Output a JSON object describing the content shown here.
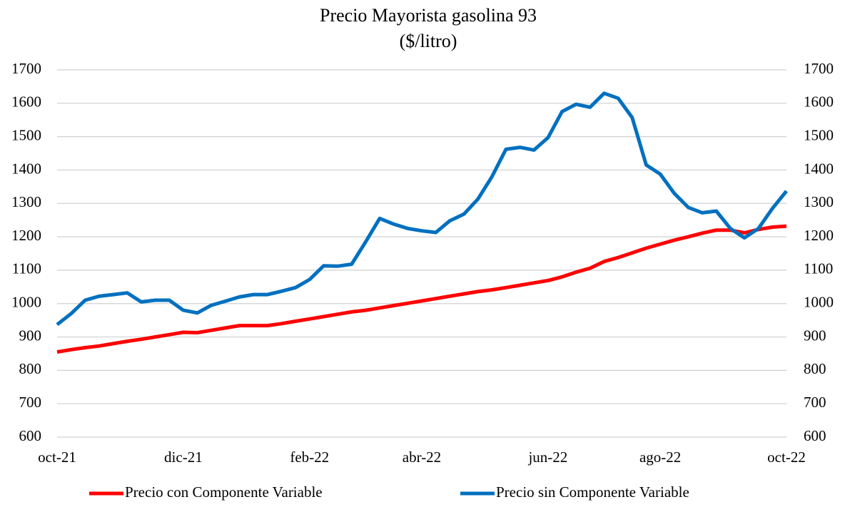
{
  "chart_data": {
    "type": "line",
    "title": "Precio Mayorista gasolina 93",
    "subtitle": "($/litro)",
    "categories": [
      "oct-21",
      null,
      null,
      null,
      null,
      null,
      null,
      null,
      null,
      "dic-21",
      null,
      null,
      null,
      null,
      null,
      null,
      null,
      null,
      "feb-22",
      null,
      null,
      null,
      null,
      null,
      null,
      null,
      "abr-22",
      null,
      null,
      null,
      null,
      null,
      null,
      null,
      null,
      "jun-22",
      null,
      null,
      null,
      null,
      null,
      null,
      null,
      "ago-22",
      null,
      null,
      null,
      null,
      null,
      null,
      null,
      null,
      "oct-22"
    ],
    "series": [
      {
        "name": "Precio con Componente Variable",
        "color": "#ff0000",
        "values": [
          855,
          862,
          868,
          873,
          880,
          887,
          893,
          900,
          907,
          914,
          913,
          920,
          927,
          934,
          934,
          934,
          940,
          947,
          954,
          961,
          968,
          975,
          980,
          987,
          994,
          1001,
          1008,
          1015,
          1022,
          1029,
          1036,
          1041,
          1048,
          1055,
          1062,
          1069,
          1080,
          1094,
          1106,
          1126,
          1138,
          1152,
          1166,
          1178,
          1190,
          1200,
          1211,
          1220,
          1220,
          1212,
          1222,
          1229,
          1232
        ]
      },
      {
        "name": "Precio sin Componente Variable",
        "color": "#0070c0",
        "values": [
          937,
          970,
          1010,
          1022,
          1027,
          1032,
          1005,
          1010,
          1010,
          980,
          972,
          995,
          1007,
          1020,
          1027,
          1027,
          1037,
          1048,
          1072,
          1113,
          1112,
          1118,
          1185,
          1255,
          1238,
          1225,
          1218,
          1213,
          1248,
          1268,
          1313,
          1380,
          1462,
          1468,
          1460,
          1497,
          1575,
          1597,
          1588,
          1630,
          1615,
          1557,
          1415,
          1388,
          1330,
          1288,
          1272,
          1277,
          1225,
          1197,
          1225,
          1285,
          1337
        ]
      }
    ],
    "ylim": [
      600,
      1700
    ],
    "yticks": [
      600,
      700,
      800,
      900,
      1000,
      1100,
      1200,
      1300,
      1400,
      1500,
      1600,
      1700
    ],
    "y2lim": [
      600,
      1700
    ],
    "y2ticks": [
      600,
      700,
      800,
      900,
      1000,
      1100,
      1200,
      1300,
      1400,
      1500,
      1600,
      1700
    ],
    "grid": true,
    "legend": "bottom"
  }
}
